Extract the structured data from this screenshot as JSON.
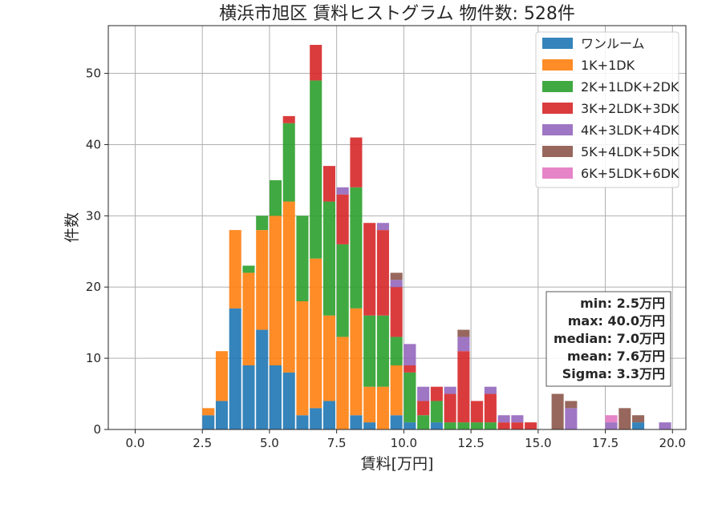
{
  "chart_data": {
    "type": "bar",
    "stacked": true,
    "title": "横浜市旭区 賃料ヒストグラム  物件数: 528件",
    "xlabel": "賃料[万円]",
    "ylabel": "件数",
    "xlim": [
      -1.0,
      20.5
    ],
    "ylim": [
      0,
      56.7
    ],
    "xticks": [
      0.0,
      2.5,
      5.0,
      7.5,
      10.0,
      12.5,
      15.0,
      17.5,
      20.0
    ],
    "xtick_labels": [
      "0.0",
      "2.5",
      "5.0",
      "7.5",
      "10.0",
      "12.5",
      "15.0",
      "17.5",
      "20.0"
    ],
    "yticks": [
      0,
      10,
      20,
      30,
      40,
      50
    ],
    "ytick_labels": [
      "0",
      "10",
      "20",
      "30",
      "40",
      "50"
    ],
    "grid": true,
    "legend_position": "top-right",
    "bin_width": 0.5,
    "bins": [
      2.5,
      3.0,
      3.5,
      4.0,
      4.5,
      5.0,
      5.5,
      6.0,
      6.5,
      7.0,
      7.5,
      8.0,
      8.5,
      9.0,
      9.5,
      10.0,
      10.5,
      11.0,
      11.5,
      12.0,
      12.5,
      13.0,
      13.5,
      14.0,
      14.5,
      15.0,
      15.5,
      16.0,
      16.5,
      17.0,
      17.5,
      18.0,
      18.5,
      19.0,
      19.5
    ],
    "series": [
      {
        "name": "ワンルーム",
        "color": "#1f77b4",
        "values": [
          2,
          4,
          17,
          9,
          14,
          9,
          8,
          2,
          3,
          4,
          0,
          2,
          1,
          0,
          2,
          1,
          0,
          1,
          0,
          0,
          0,
          0,
          0,
          0,
          0,
          0,
          0,
          0,
          0,
          0,
          0,
          0,
          1,
          0,
          0
        ]
      },
      {
        "name": "1K+1DK",
        "color": "#ff7f0e",
        "values": [
          1,
          7,
          11,
          13,
          14,
          21,
          24,
          16,
          21,
          12,
          13,
          15,
          5,
          6,
          7,
          0,
          0,
          0,
          0,
          0,
          0,
          0,
          0,
          0,
          0,
          0,
          0,
          0,
          0,
          0,
          0,
          0,
          0,
          0,
          0
        ]
      },
      {
        "name": "2K+1LDK+2DK",
        "color": "#2ca02c",
        "values": [
          0,
          0,
          0,
          1,
          2,
          5,
          11,
          12,
          25,
          16,
          13,
          17,
          10,
          10,
          4,
          7,
          2,
          3,
          1,
          1,
          1,
          1,
          0,
          0,
          0,
          0,
          0,
          0,
          0,
          0,
          0,
          0,
          0,
          0,
          0
        ]
      },
      {
        "name": "3K+2LDK+3DK",
        "color": "#d62728",
        "values": [
          0,
          0,
          0,
          0,
          0,
          0,
          1,
          0,
          5,
          5,
          7,
          7,
          13,
          12,
          7,
          1,
          2,
          2,
          4,
          10,
          3,
          4,
          1,
          1,
          1,
          0,
          0,
          0,
          0,
          0,
          0,
          0,
          0,
          0,
          0
        ]
      },
      {
        "name": "4K+3LDK+4DK",
        "color": "#9467bd",
        "values": [
          0,
          0,
          0,
          0,
          0,
          0,
          0,
          0,
          0,
          0,
          1,
          0,
          0,
          1,
          1,
          3,
          2,
          0,
          1,
          2,
          0,
          1,
          1,
          1,
          0,
          0,
          0,
          3,
          0,
          0,
          1,
          0,
          0,
          0,
          1
        ]
      },
      {
        "name": "5K+4LDK+5DK",
        "color": "#8c564b",
        "values": [
          0,
          0,
          0,
          0,
          0,
          0,
          0,
          0,
          0,
          0,
          0,
          0,
          0,
          0,
          1,
          0,
          0,
          0,
          0,
          1,
          0,
          0,
          0,
          0,
          0,
          0,
          5,
          1,
          0,
          0,
          0,
          3,
          1,
          0,
          0
        ]
      },
      {
        "name": "6K+5LDK+6DK",
        "color": "#e377c2",
        "values": [
          0,
          0,
          0,
          0,
          0,
          0,
          0,
          0,
          0,
          0,
          0,
          0,
          0,
          0,
          0,
          0,
          0,
          0,
          0,
          0,
          0,
          0,
          0,
          0,
          0,
          0,
          0,
          0,
          0,
          0,
          1,
          0,
          0,
          0,
          0
        ]
      }
    ],
    "stats_box": {
      "lines": [
        "min: 2.5万円",
        "max: 40.0万円",
        "median: 7.0万円",
        "mean: 7.6万円",
        "Sigma: 3.3万円"
      ],
      "position": "right"
    }
  }
}
